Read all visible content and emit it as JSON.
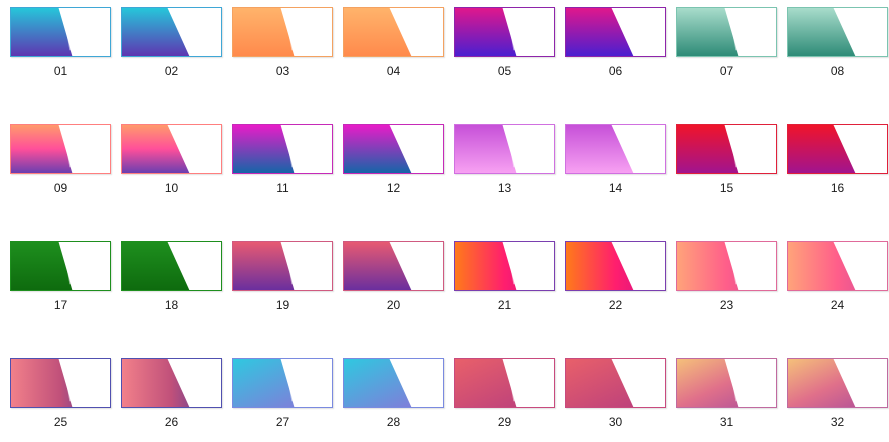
{
  "thumbnails": [
    {
      "label": "01",
      "colors": [
        "#26C6DA",
        "#5E35B1"
      ],
      "variant": "a",
      "border": "#3FA7D6"
    },
    {
      "label": "02",
      "colors": [
        "#26C6DA",
        "#5E35B1"
      ],
      "variant": "b",
      "border": "#3FA7D6"
    },
    {
      "label": "03",
      "colors": [
        "#FFB36B",
        "#FF8A4C"
      ],
      "variant": "a",
      "border": "#F4A261"
    },
    {
      "label": "04",
      "colors": [
        "#FFB36B",
        "#FF8A4C"
      ],
      "variant": "b",
      "border": "#F4A261"
    },
    {
      "label": "05",
      "colors": [
        "#E0178C",
        "#4A1FD0"
      ],
      "variant": "a",
      "border": "#8E24AA"
    },
    {
      "label": "06",
      "colors": [
        "#E0178C",
        "#4A1FD0"
      ],
      "variant": "b",
      "border": "#8E24AA"
    },
    {
      "label": "07",
      "colors": [
        "#A8DCCB",
        "#2E8B77"
      ],
      "variant": "a",
      "border": "#7BC4B0"
    },
    {
      "label": "08",
      "colors": [
        "#A8DCCB",
        "#2E8B77"
      ],
      "variant": "b",
      "border": "#7BC4B0"
    },
    {
      "label": "09",
      "colors": [
        "#FF9A6B",
        "#FF4F9A",
        "#6A3FB0"
      ],
      "variant": "a",
      "border": "#FF7F7F"
    },
    {
      "label": "10",
      "colors": [
        "#FF9A6B",
        "#FF4F9A",
        "#6A3FB0"
      ],
      "variant": "b",
      "border": "#FF7F7F"
    },
    {
      "label": "11",
      "colors": [
        "#E81CC8",
        "#1565A8"
      ],
      "variant": "a",
      "border": "#C62AB8"
    },
    {
      "label": "12",
      "colors": [
        "#E81CC8",
        "#1565A8"
      ],
      "variant": "b",
      "border": "#C62AB8"
    },
    {
      "label": "13",
      "colors": [
        "#C650D8",
        "#F7A1F2"
      ],
      "variant": "a",
      "border": "#D070E0"
    },
    {
      "label": "14",
      "colors": [
        "#C650D8",
        "#F7A1F2"
      ],
      "variant": "b",
      "border": "#D070E0"
    },
    {
      "label": "15",
      "colors": [
        "#F0142A",
        "#A1148F"
      ],
      "variant": "a",
      "border": "#E0203A"
    },
    {
      "label": "16",
      "colors": [
        "#F0142A",
        "#A1148F"
      ],
      "variant": "b",
      "border": "#E0203A"
    },
    {
      "label": "17",
      "colors": [
        "#1E8F1E",
        "#0E6B0E"
      ],
      "variant": "a",
      "border": "#1E8F1E"
    },
    {
      "label": "18",
      "colors": [
        "#1E8F1E",
        "#0E6B0E"
      ],
      "variant": "b",
      "border": "#1E8F1E"
    },
    {
      "label": "19",
      "colors": [
        "#E75A72",
        "#6A2F9E"
      ],
      "variant": "a",
      "border": "#D05A80"
    },
    {
      "label": "20",
      "colors": [
        "#E75A72",
        "#6A2F9E"
      ],
      "variant": "b",
      "border": "#D05A80"
    },
    {
      "label": "21",
      "colors": [
        "#FF7A1A",
        "#FF1E6E",
        "#C70E8E"
      ],
      "variant": "a",
      "border": "#7A3FB0",
      "dir": "h"
    },
    {
      "label": "22",
      "colors": [
        "#FF7A1A",
        "#FF1E6E",
        "#C70E8E"
      ],
      "variant": "b",
      "border": "#7A3FB0",
      "dir": "h"
    },
    {
      "label": "23",
      "colors": [
        "#FFA37A",
        "#FF5E8A",
        "#C84A9E"
      ],
      "variant": "a",
      "border": "#E06A9A",
      "dir": "h"
    },
    {
      "label": "24",
      "colors": [
        "#FFA37A",
        "#FF5E8A",
        "#C84A9E"
      ],
      "variant": "b",
      "border": "#E06A9A",
      "dir": "h"
    },
    {
      "label": "25",
      "colors": [
        "#F2808A",
        "#C0507A",
        "#3A3AA0"
      ],
      "variant": "a",
      "border": "#5050B0",
      "dir": "h"
    },
    {
      "label": "26",
      "colors": [
        "#F2808A",
        "#C0507A",
        "#3A3AA0"
      ],
      "variant": "b",
      "border": "#5050B0",
      "dir": "h"
    },
    {
      "label": "27",
      "colors": [
        "#2FC8E0",
        "#8E70D8"
      ],
      "variant": "a",
      "border": "#7A8AE0",
      "dir": "d"
    },
    {
      "label": "28",
      "colors": [
        "#2FC8E0",
        "#8E70D8"
      ],
      "variant": "b",
      "border": "#7A8AE0",
      "dir": "d"
    },
    {
      "label": "29",
      "colors": [
        "#E8606A",
        "#B63C7E"
      ],
      "variant": "a",
      "border": "#C84A7E",
      "dir": "d"
    },
    {
      "label": "30",
      "colors": [
        "#E8606A",
        "#B63C7E"
      ],
      "variant": "b",
      "border": "#C84A7E",
      "dir": "d"
    },
    {
      "label": "31",
      "colors": [
        "#F5C07A",
        "#E0708A",
        "#A84A9A"
      ],
      "variant": "a",
      "border": "#C06AA0",
      "dir": "d"
    },
    {
      "label": "32",
      "colors": [
        "#F5C07A",
        "#E0708A",
        "#A84A9A"
      ],
      "variant": "b",
      "border": "#C06AA0",
      "dir": "d"
    }
  ]
}
